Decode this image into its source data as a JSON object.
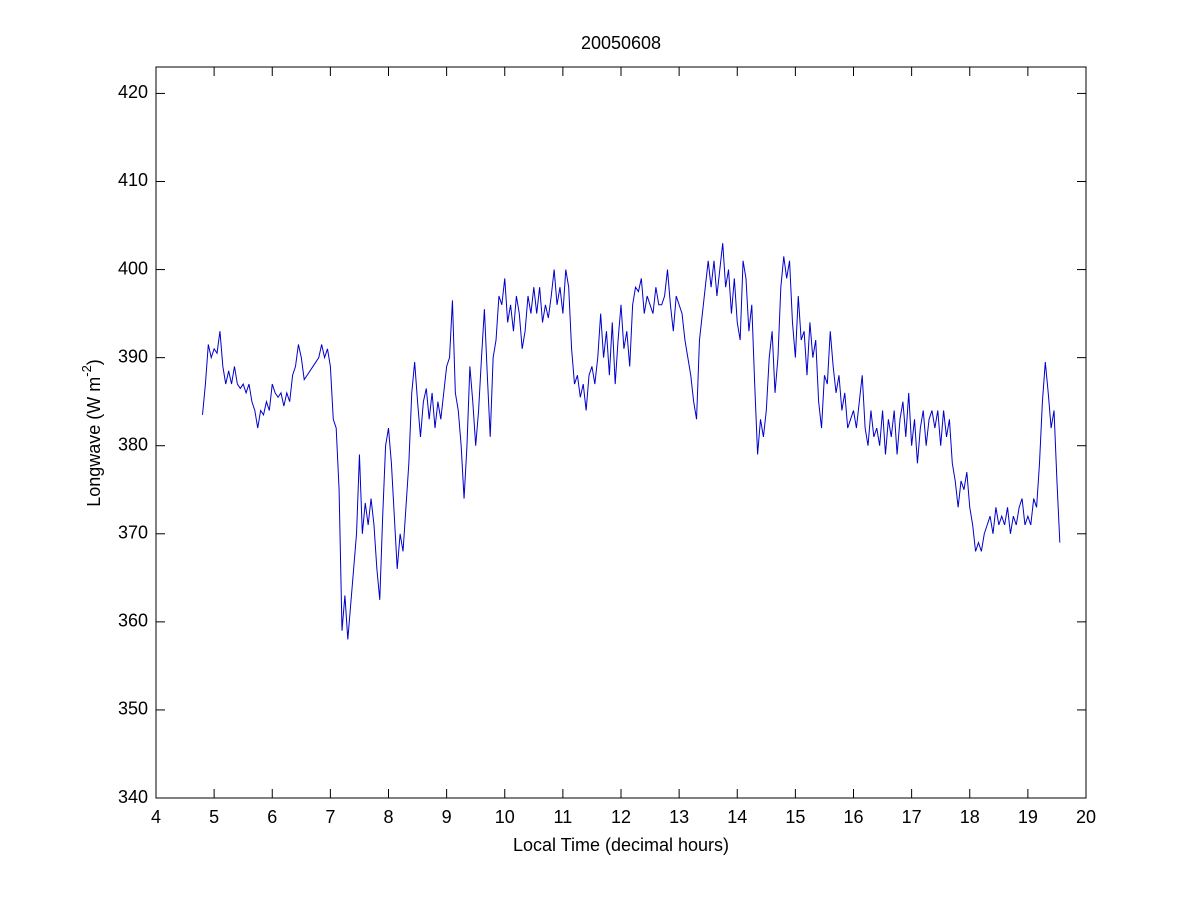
{
  "chart_data": {
    "type": "line",
    "title": "20050608",
    "xlabel": "Local Time (decimal hours)",
    "ylabel": {
      "text": "Longwave (W m",
      "superscript": "-2",
      "suffix": ")"
    },
    "xlim": [
      4,
      20
    ],
    "ylim": [
      340,
      423
    ],
    "xticks": [
      4,
      5,
      6,
      7,
      8,
      9,
      10,
      11,
      12,
      13,
      14,
      15,
      16,
      17,
      18,
      19,
      20
    ],
    "yticks": [
      340,
      350,
      360,
      370,
      380,
      390,
      400,
      410,
      420
    ],
    "grid": false,
    "series": [
      {
        "color": "#0000cc",
        "x": [
          4.8,
          4.85,
          4.9,
          4.95,
          5.0,
          5.05,
          5.1,
          5.15,
          5.2,
          5.25,
          5.3,
          5.35,
          5.4,
          5.45,
          5.5,
          5.55,
          5.6,
          5.65,
          5.7,
          5.75,
          5.8,
          5.85,
          5.9,
          5.95,
          6.0,
          6.05,
          6.1,
          6.15,
          6.2,
          6.25,
          6.3,
          6.35,
          6.4,
          6.45,
          6.5,
          6.55,
          6.6,
          6.7,
          6.8,
          6.85,
          6.9,
          6.95,
          7.0,
          7.05,
          7.1,
          7.15,
          7.2,
          7.25,
          7.3,
          7.35,
          7.4,
          7.45,
          7.5,
          7.55,
          7.6,
          7.65,
          7.7,
          7.75,
          7.8,
          7.85,
          7.9,
          7.95,
          8.0,
          8.05,
          8.1,
          8.15,
          8.2,
          8.25,
          8.3,
          8.35,
          8.4,
          8.45,
          8.5,
          8.55,
          8.6,
          8.65,
          8.7,
          8.75,
          8.8,
          8.85,
          8.9,
          8.95,
          9.0,
          9.05,
          9.1,
          9.15,
          9.2,
          9.25,
          9.3,
          9.35,
          9.4,
          9.45,
          9.5,
          9.55,
          9.6,
          9.65,
          9.7,
          9.75,
          9.8,
          9.85,
          9.9,
          9.95,
          10.0,
          10.05,
          10.1,
          10.15,
          10.2,
          10.25,
          10.3,
          10.35,
          10.4,
          10.45,
          10.5,
          10.55,
          10.6,
          10.65,
          10.7,
          10.75,
          10.8,
          10.85,
          10.9,
          10.95,
          11.0,
          11.05,
          11.1,
          11.15,
          11.2,
          11.25,
          11.3,
          11.35,
          11.4,
          11.45,
          11.5,
          11.55,
          11.6,
          11.65,
          11.7,
          11.75,
          11.8,
          11.85,
          11.9,
          11.95,
          12.0,
          12.05,
          12.1,
          12.15,
          12.2,
          12.25,
          12.3,
          12.35,
          12.4,
          12.45,
          12.5,
          12.55,
          12.6,
          12.65,
          12.7,
          12.75,
          12.8,
          12.85,
          12.9,
          12.95,
          13.0,
          13.05,
          13.1,
          13.15,
          13.2,
          13.25,
          13.3,
          13.35,
          13.4,
          13.45,
          13.5,
          13.55,
          13.6,
          13.65,
          13.7,
          13.75,
          13.8,
          13.85,
          13.9,
          13.95,
          14.0,
          14.05,
          14.1,
          14.15,
          14.2,
          14.25,
          14.3,
          14.35,
          14.4,
          14.45,
          14.5,
          14.55,
          14.6,
          14.65,
          14.7,
          14.75,
          14.8,
          14.85,
          14.9,
          14.95,
          15.0,
          15.05,
          15.1,
          15.15,
          15.2,
          15.25,
          15.3,
          15.35,
          15.4,
          15.45,
          15.5,
          15.55,
          15.6,
          15.65,
          15.7,
          15.75,
          15.8,
          15.85,
          15.9,
          15.95,
          16.0,
          16.05,
          16.1,
          16.15,
          16.2,
          16.25,
          16.3,
          16.35,
          16.4,
          16.45,
          16.5,
          16.55,
          16.6,
          16.65,
          16.7,
          16.75,
          16.8,
          16.85,
          16.9,
          16.95,
          17.0,
          17.05,
          17.1,
          17.15,
          17.2,
          17.25,
          17.3,
          17.35,
          17.4,
          17.45,
          17.5,
          17.55,
          17.6,
          17.65,
          17.7,
          17.75,
          17.8,
          17.85,
          17.9,
          17.95,
          18.0,
          18.05,
          18.1,
          18.15,
          18.2,
          18.25,
          18.3,
          18.35,
          18.4,
          18.45,
          18.5,
          18.55,
          18.6,
          18.65,
          18.7,
          18.75,
          18.8,
          18.85,
          18.9,
          18.95,
          19.0,
          19.05,
          19.1,
          19.15,
          19.2,
          19.25,
          19.3,
          19.35,
          19.4,
          19.45,
          19.5,
          19.55
        ],
        "values": [
          383.5,
          387,
          391.5,
          390,
          391,
          390.5,
          393,
          389,
          387,
          388.5,
          387,
          389,
          387,
          386.5,
          387,
          386,
          387,
          385,
          384,
          382,
          384,
          383.5,
          385,
          384,
          387,
          386,
          385.5,
          386,
          384.5,
          386,
          385,
          388,
          389,
          391.5,
          390,
          387.5,
          388,
          389,
          390,
          391.5,
          390,
          391,
          389,
          383,
          382,
          375,
          359,
          363,
          358,
          362,
          366,
          370,
          379,
          370,
          373.5,
          371,
          374,
          371,
          366,
          362.5,
          372,
          380,
          382,
          378,
          372,
          366,
          370,
          368,
          373,
          378,
          386,
          389.5,
          385,
          381,
          385,
          386.5,
          383,
          386,
          382,
          385,
          383,
          386,
          389,
          390,
          396.5,
          386,
          384,
          380,
          374,
          380,
          389,
          385,
          380,
          384,
          390,
          395.5,
          388,
          381,
          390,
          392,
          397,
          396,
          399,
          394,
          396,
          393,
          397,
          395,
          391,
          393,
          397,
          395,
          398,
          395,
          398,
          394,
          396,
          394.5,
          397,
          400,
          396,
          398,
          395,
          400,
          398,
          391,
          387,
          388,
          385.5,
          387,
          384,
          388,
          389,
          387,
          390,
          395,
          390,
          393,
          388,
          394,
          387,
          392,
          396,
          391,
          393,
          389,
          396,
          398,
          397.5,
          399,
          395,
          397,
          396,
          395,
          398,
          396,
          396,
          397,
          400,
          396,
          393,
          397,
          396,
          395,
          392,
          390,
          388,
          385,
          383,
          392,
          395,
          398,
          401,
          398,
          401,
          397,
          400,
          403,
          398,
          400,
          395,
          399,
          394,
          392,
          401,
          399,
          393,
          396,
          387,
          379,
          383,
          381,
          384,
          390,
          393,
          386,
          390,
          398,
          401.5,
          399,
          401,
          394,
          390,
          397,
          392,
          393,
          388,
          394,
          390,
          392,
          385,
          382,
          388,
          387,
          393,
          389,
          386,
          388,
          384,
          386,
          382,
          383,
          384,
          382,
          385,
          388,
          382,
          380,
          384,
          381,
          382,
          380,
          384,
          379,
          383,
          381,
          384,
          379,
          383,
          385,
          381,
          386,
          380,
          383,
          378,
          382,
          384,
          380,
          383,
          384,
          382,
          384,
          380,
          384,
          381,
          383,
          378,
          376,
          373,
          376,
          375,
          377,
          373,
          371,
          368,
          369,
          368,
          370,
          371,
          372,
          370,
          373,
          371,
          372,
          371,
          373,
          370,
          372,
          371,
          373,
          374,
          371,
          372,
          371,
          374,
          373,
          378,
          385,
          389.5,
          386,
          382,
          384,
          376,
          369
        ]
      }
    ]
  }
}
